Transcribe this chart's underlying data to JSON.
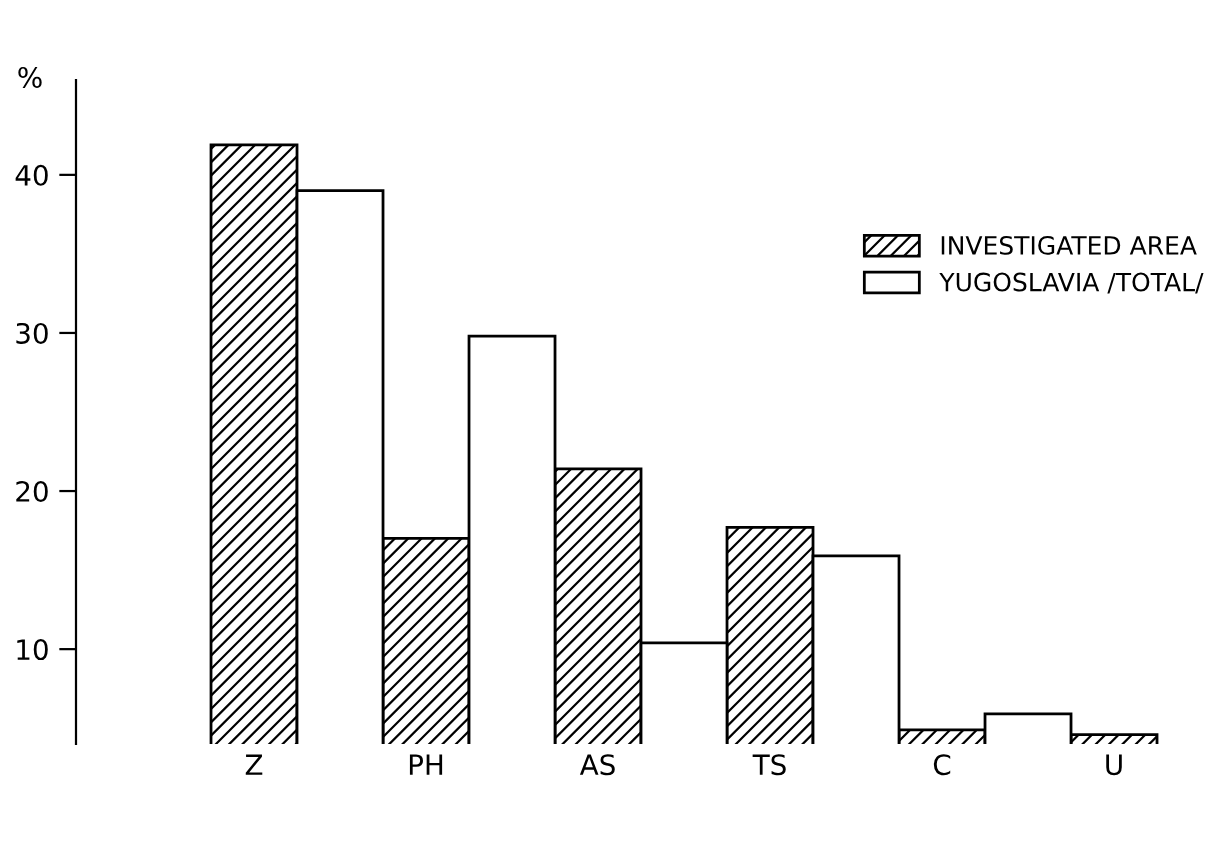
{
  "chart_data": {
    "type": "bar",
    "ylabel": "%",
    "categories": [
      "Z",
      "PH",
      "AS",
      "TS",
      "C",
      "U"
    ],
    "series": [
      {
        "name": "INVESTIGATED AREA",
        "color": "#000000",
        "values": [
          41.9,
          17.0,
          21.4,
          17.7,
          4.9,
          4.6
        ]
      },
      {
        "name": "YUGOSLAVIA /TOTAL/",
        "color": "#000000",
        "values": [
          39.0,
          29.8,
          10.4,
          15.9,
          5.9,
          null
        ]
      }
    ],
    "ylim": [
      4,
      46
    ],
    "yticks": [
      10,
      20,
      30,
      40
    ],
    "grid": false,
    "legend": "right"
  }
}
